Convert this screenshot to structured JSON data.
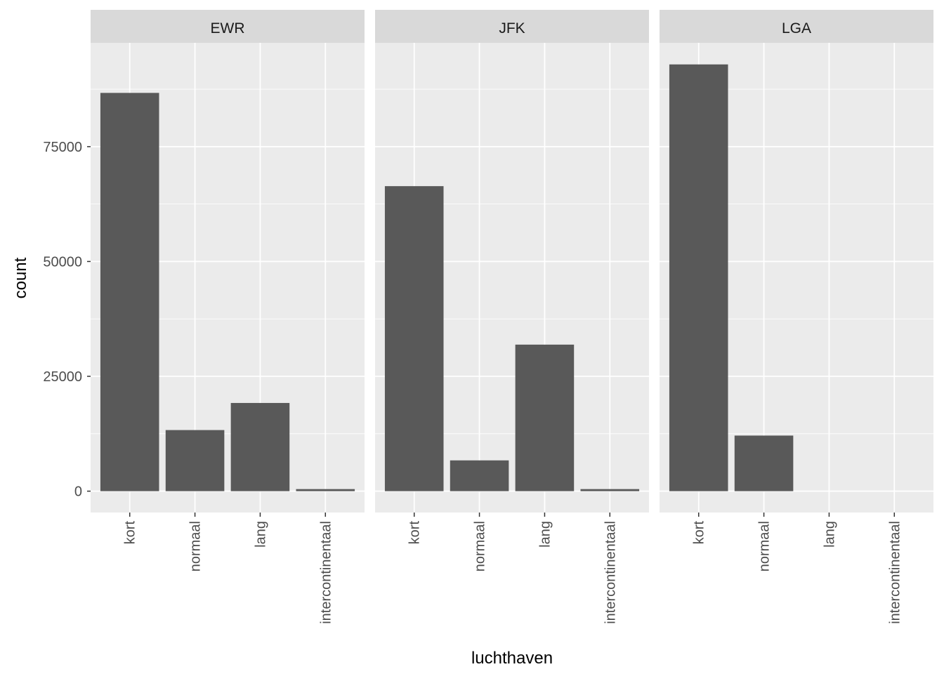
{
  "chart_data": {
    "type": "bar",
    "title": "",
    "xlabel": "luchthaven",
    "ylabel": "count",
    "ylim": [
      -4650,
      97600
    ],
    "yticks": [
      0,
      25000,
      50000,
      75000
    ],
    "ytick_labels": [
      "0",
      "25000",
      "50000",
      "75000"
    ],
    "grid": true,
    "categories": [
      "kort",
      "normaal",
      "lang",
      "intercontinentaal"
    ],
    "facets": [
      {
        "name": "EWR",
        "values": [
          86700,
          13300,
          19200,
          450
        ]
      },
      {
        "name": "JFK",
        "values": [
          66400,
          6700,
          31900,
          450
        ]
      },
      {
        "name": "LGA",
        "values": [
          92900,
          12100,
          0,
          0
        ]
      }
    ],
    "colors": {
      "bar": "#595959",
      "panel": "#EBEBEB",
      "strip": "#D9D9D9",
      "grid": "#FFFFFF"
    }
  }
}
